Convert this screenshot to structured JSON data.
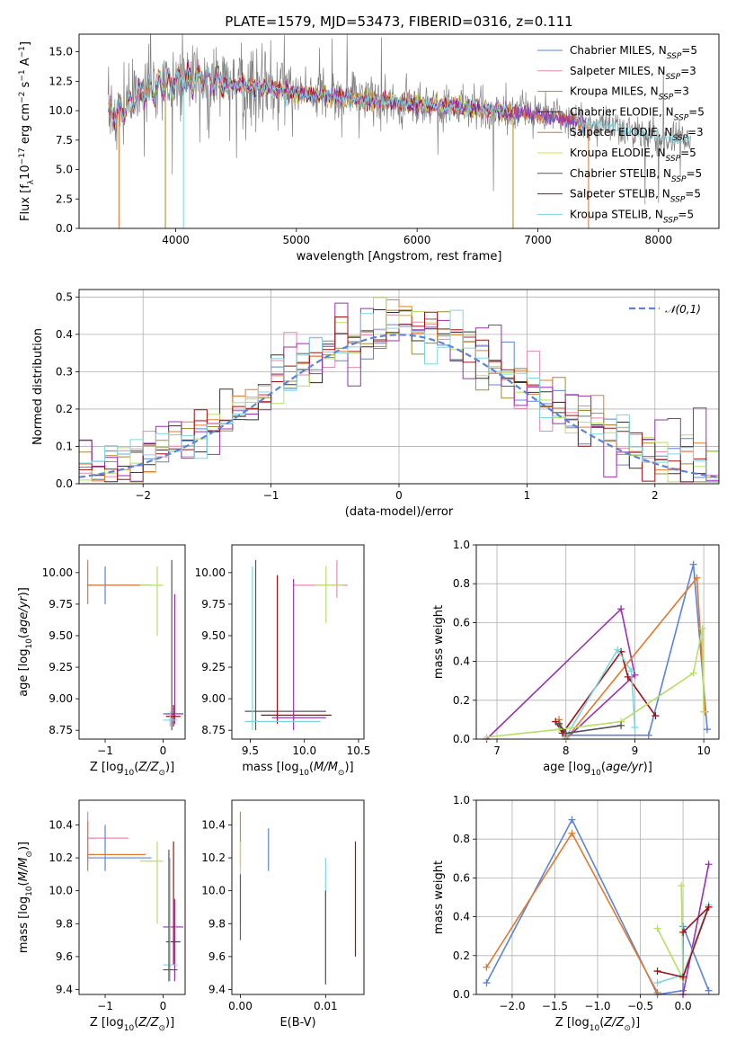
{
  "colors": {
    "chabrier_miles": "#5b84d8",
    "salpeter_miles": "#e38ab0",
    "kroupa_miles": "#a58a2a",
    "chabrier_elodie": "#333333",
    "salpeter_elodie": "#e0702a",
    "kroupa_elodie": "#d8e04a",
    "chabrier_stelib": "#555555",
    "salpeter_stelib": "#a01010",
    "kroupa_stelib": "#7cd6e0",
    "purple": "#9b30b0",
    "green": "#b6e066",
    "orange": "#e07a30",
    "blue": "#5b84d8",
    "cyan": "#7cd6e0",
    "darkred": "#a01010",
    "spectrum": "#808080"
  },
  "chart_data": [
    {
      "id": "spectrum",
      "type": "line",
      "title": "PLATE=1579, MJD=53473, FIBERID=0316, z=0.111",
      "xlabel": "wavelength [Angstrom, rest frame]",
      "ylabel": "Flux [f$_\\lambda$10$^{-17}$ erg cm$^{-2}$ s$^{-1}$ A$^{-1}$]",
      "xlim": [
        3200,
        8500
      ],
      "ylim": [
        0,
        16.5
      ],
      "xticks": [
        4000,
        5000,
        6000,
        7000,
        8000
      ],
      "yticks": [
        0.0,
        2.5,
        5.0,
        7.5,
        10.0,
        12.5,
        15.0
      ],
      "legend_position": "top-right",
      "legend": [
        {
          "label": "Chabrier MILES, N",
          "sub": "SSP",
          "suffix": "=5",
          "color": "#5b84d8"
        },
        {
          "label": "Salpeter MILES, N",
          "sub": "SSP",
          "suffix": "=3",
          "color": "#e38ab0"
        },
        {
          "label": "Kroupa MILES, N",
          "sub": "SSP",
          "suffix": "=3",
          "color": "#a58a2a"
        },
        {
          "label": "Chabrier ELODIE, N",
          "sub": "SSP",
          "suffix": "=5",
          "color": "#333333"
        },
        {
          "label": "Salpeter ELODIE, N",
          "sub": "SSP",
          "suffix": "=3",
          "color": "#e0702a"
        },
        {
          "label": "Kroupa ELODIE, N",
          "sub": "SSP",
          "suffix": "=5",
          "color": "#d8e04a"
        },
        {
          "label": "Chabrier STELIB, N",
          "sub": "SSP",
          "suffix": "=5",
          "color": "#555555"
        },
        {
          "label": "Salpeter STELIB, N",
          "sub": "SSP",
          "suffix": "=5",
          "color": "#a01010"
        },
        {
          "label": "Kroupa STELIB, N",
          "sub": "SSP",
          "suffix": "=5",
          "color": "#7cd6e0"
        }
      ],
      "continuum": [
        [
          3440,
          9.6
        ],
        [
          3550,
          10.0
        ],
        [
          3700,
          11.3
        ],
        [
          3850,
          12.0
        ],
        [
          4000,
          12.6
        ],
        [
          4200,
          12.7
        ],
        [
          4500,
          12.2
        ],
        [
          5000,
          11.5
        ],
        [
          5500,
          11.0
        ],
        [
          6000,
          10.5
        ],
        [
          6500,
          10.2
        ],
        [
          7000,
          9.6
        ],
        [
          7500,
          8.8
        ],
        [
          8000,
          7.8
        ],
        [
          8270,
          7.5
        ]
      ]
    },
    {
      "id": "residuals",
      "type": "histogram",
      "xlabel": "(data-model)/error",
      "ylabel": "Normed distribution",
      "xlim": [
        -2.5,
        2.5
      ],
      "ylim": [
        0,
        0.52
      ],
      "xticks": [
        -2,
        -1,
        0,
        1,
        2
      ],
      "yticks": [
        0.0,
        0.1,
        0.2,
        0.3,
        0.4,
        0.5
      ],
      "grid": true,
      "legend_position": "top-right",
      "reference_curve": {
        "label": "𝒩(0,1)",
        "color": "#5b84d8",
        "style": "dashed"
      },
      "bin_width": 0.1
    },
    {
      "id": "age-vs-Z",
      "type": "errorbar",
      "xlabel": "Z [log10(Z/Z☉)]",
      "ylabel": "age [log10(age/yr)]",
      "xlim": [
        -1.45,
        0.38
      ],
      "ylim": [
        8.68,
        10.22
      ],
      "xticks": [
        -1,
        0
      ],
      "yticks": [
        8.75,
        9.0,
        9.25,
        9.5,
        9.75,
        10.0
      ],
      "points": [
        {
          "x": -1.0,
          "y": 9.9,
          "xl": -1.3,
          "xh": -0.2,
          "yl": 9.75,
          "yh": 10.05,
          "color": "#5b84d8"
        },
        {
          "x": -1.3,
          "y": 9.9,
          "xl": -1.3,
          "xh": -0.3,
          "yl": 9.75,
          "yh": 10.1,
          "color": "#e07a30"
        },
        {
          "x": -0.1,
          "y": 9.9,
          "xl": -0.4,
          "xh": 0.0,
          "yl": 9.5,
          "yh": 10.05,
          "color": "#b6e066"
        },
        {
          "x": 0.15,
          "y": 8.88,
          "xl": 0.05,
          "xh": 0.35,
          "yl": 8.75,
          "yh": 10.1,
          "color": "#555555"
        },
        {
          "x": 0.2,
          "y": 8.88,
          "xl": 0.0,
          "xh": 0.35,
          "yl": 8.8,
          "yh": 9.83,
          "color": "#9b30b0"
        },
        {
          "x": 0.18,
          "y": 8.86,
          "xl": 0.05,
          "xh": 0.3,
          "yl": 8.78,
          "yh": 8.95,
          "color": "#a01010"
        },
        {
          "x": 0.12,
          "y": 8.83,
          "xl": 0.0,
          "xh": 0.25,
          "yl": 8.78,
          "yh": 8.9,
          "color": "#7cd6e0"
        }
      ]
    },
    {
      "id": "age-vs-mass",
      "type": "errorbar",
      "xlabel": "mass [log10(M/M☉)]",
      "ylabel": "",
      "xlim": [
        9.33,
        10.55
      ],
      "ylim": [
        8.68,
        10.22
      ],
      "xticks": [
        9.5,
        10.0,
        10.5
      ],
      "yticks": [
        8.75,
        9.0,
        9.25,
        9.5,
        9.75,
        10.0
      ],
      "points": [
        {
          "x": 10.3,
          "y": 9.9,
          "xl": 9.9,
          "xh": 10.4,
          "yl": 9.8,
          "yh": 10.1,
          "color": "#e38ab0"
        },
        {
          "x": 10.2,
          "y": 9.9,
          "xl": 10.1,
          "xh": 10.35,
          "yl": 9.6,
          "yh": 10.05,
          "color": "#b6e066"
        },
        {
          "x": 9.55,
          "y": 8.9,
          "xl": 9.45,
          "xh": 10.2,
          "yl": 8.75,
          "yh": 10.1,
          "color": "#555555"
        },
        {
          "x": 9.75,
          "y": 8.87,
          "xl": 9.6,
          "xh": 10.25,
          "yl": 8.8,
          "yh": 9.98,
          "color": "#a01010"
        },
        {
          "x": 9.9,
          "y": 8.85,
          "xl": 9.7,
          "xh": 10.2,
          "yl": 8.75,
          "yh": 9.95,
          "color": "#9b30b0"
        },
        {
          "x": 9.52,
          "y": 8.82,
          "xl": 9.45,
          "xh": 10.15,
          "yl": 8.75,
          "yh": 10.05,
          "color": "#7cd6e0"
        }
      ]
    },
    {
      "id": "mass-weight-vs-age",
      "type": "line",
      "xlabel": "age [log10(age/yr)]",
      "ylabel": "mass weight",
      "xlim": [
        6.7,
        10.22
      ],
      "ylim": [
        0,
        1.0
      ],
      "xticks": [
        7,
        8,
        9,
        10
      ],
      "yticks": [
        0.0,
        0.2,
        0.4,
        0.6,
        0.8,
        1.0
      ],
      "grid": true,
      "series": [
        {
          "color": "#9b30b0",
          "x": [
            6.85,
            8.8,
            9.0,
            8.0,
            7.9
          ],
          "y": [
            0.0,
            0.67,
            0.33,
            0.0,
            0.08
          ]
        },
        {
          "color": "#5b84d8",
          "x": [
            8.0,
            9.2,
            9.85,
            10.05
          ],
          "y": [
            0.02,
            0.02,
            0.9,
            0.05
          ]
        },
        {
          "color": "#e07a30",
          "x": [
            7.9,
            8.0,
            9.9,
            10.02
          ],
          "y": [
            0.1,
            0.0,
            0.83,
            0.14
          ]
        },
        {
          "color": "#a01010",
          "x": [
            7.85,
            7.95,
            8.8,
            8.9,
            9.3
          ],
          "y": [
            0.09,
            0.03,
            0.45,
            0.32,
            0.12
          ]
        },
        {
          "color": "#7cd6e0",
          "x": [
            8.0,
            8.75,
            8.95,
            9.0
          ],
          "y": [
            0.01,
            0.46,
            0.35,
            0.06
          ]
        },
        {
          "color": "#b6e066",
          "x": [
            6.85,
            7.9,
            8.8,
            9.85,
            9.98,
            10.0
          ],
          "y": [
            0.01,
            0.05,
            0.09,
            0.34,
            0.57,
            0.14
          ]
        },
        {
          "color": "#555555",
          "x": [
            7.9,
            8.0,
            8.8
          ],
          "y": [
            0.08,
            0.03,
            0.07
          ]
        }
      ]
    },
    {
      "id": "mass-vs-Z",
      "type": "errorbar",
      "xlabel": "Z [log10(Z/Z☉)]",
      "ylabel": "mass [log10(M/M☉)]",
      "xlim": [
        -1.45,
        0.38
      ],
      "ylim": [
        9.37,
        10.55
      ],
      "xticks": [
        -1,
        0
      ],
      "yticks": [
        9.4,
        9.6,
        9.8,
        10.0,
        10.2,
        10.4
      ],
      "points": [
        {
          "x": -1.3,
          "y": 10.32,
          "xl": -1.3,
          "xh": -0.6,
          "yl": 10.18,
          "yh": 10.48,
          "color": "#e38ab0"
        },
        {
          "x": -1.0,
          "y": 10.2,
          "xl": -1.3,
          "xh": -0.2,
          "yl": 10.12,
          "yh": 10.4,
          "color": "#5b84d8"
        },
        {
          "x": -1.3,
          "y": 10.22,
          "xl": -1.3,
          "xh": -0.3,
          "yl": 10.12,
          "yh": 10.42,
          "color": "#e07a30"
        },
        {
          "x": -0.1,
          "y": 10.18,
          "xl": -0.4,
          "xh": 0.0,
          "yl": 9.8,
          "yh": 10.3,
          "color": "#b6e066"
        },
        {
          "x": 0.2,
          "y": 9.78,
          "xl": 0.0,
          "xh": 0.35,
          "yl": 9.45,
          "yh": 9.95,
          "color": "#9b30b0"
        },
        {
          "x": 0.18,
          "y": 9.69,
          "xl": 0.05,
          "xh": 0.3,
          "yl": 9.55,
          "yh": 10.3,
          "color": "#a01010"
        },
        {
          "x": 0.12,
          "y": 9.55,
          "xl": 0.0,
          "xh": 0.25,
          "yl": 9.45,
          "yh": 10.2,
          "color": "#7cd6e0"
        },
        {
          "x": 0.1,
          "y": 9.52,
          "xl": 0.0,
          "xh": 0.25,
          "yl": 9.45,
          "yh": 10.25,
          "color": "#555555"
        }
      ]
    },
    {
      "id": "mass-vs-ebv",
      "type": "errorbar",
      "xlabel": "E(B-V)",
      "ylabel": "",
      "xlim": [
        -0.001,
        0.0145
      ],
      "ylim": [
        9.37,
        10.55
      ],
      "xticks": [
        0.0,
        0.01
      ],
      "yticks": [
        9.4,
        9.6,
        9.8,
        10.0,
        10.2,
        10.4
      ],
      "points": [
        {
          "x": 0.0,
          "y": 10.3,
          "xl": 0.0,
          "xh": 0.0,
          "yl": 10.15,
          "yh": 10.48,
          "color": "#e07a30"
        },
        {
          "x": 0.0,
          "y": 10.0,
          "xl": 0.0,
          "xh": 0.0,
          "yl": 9.8,
          "yh": 10.3,
          "color": "#b6e066"
        },
        {
          "x": 0.0,
          "y": 9.85,
          "xl": 0.0,
          "xh": 0.0,
          "yl": 9.7,
          "yh": 10.1,
          "color": "#9b30b0"
        },
        {
          "x": 0.0033,
          "y": 10.25,
          "xl": 0.0033,
          "xh": 0.0033,
          "yl": 10.12,
          "yh": 10.38,
          "color": "#5b84d8"
        },
        {
          "x": 0.01,
          "y": 9.8,
          "xl": 0.01,
          "xh": 0.01,
          "yl": 9.45,
          "yh": 10.2,
          "color": "#7cd6e0"
        },
        {
          "x": 0.01,
          "y": 9.7,
          "xl": 0.01,
          "xh": 0.01,
          "yl": 9.43,
          "yh": 10.0,
          "color": "#555555"
        },
        {
          "x": 0.0135,
          "y": 9.95,
          "xl": 0.0135,
          "xh": 0.0135,
          "yl": 9.6,
          "yh": 10.3,
          "color": "#a01010"
        }
      ]
    },
    {
      "id": "mass-weight-vs-Z",
      "type": "line",
      "xlabel": "Z [log10(Z/Z☉)]",
      "ylabel": "mass weight",
      "xlim": [
        -2.42,
        0.42
      ],
      "ylim": [
        0,
        1.0
      ],
      "xticks": [
        -2.0,
        -1.5,
        -1.0,
        -0.5,
        0.0
      ],
      "yticks": [
        0.0,
        0.2,
        0.4,
        0.6,
        0.8,
        1.0
      ],
      "grid": true,
      "series": [
        {
          "color": "#5b84d8",
          "x": [
            -2.3,
            -1.3,
            -0.3,
            0.0,
            0.0,
            0.3
          ],
          "y": [
            0.06,
            0.9,
            0.0,
            0.02,
            0.35,
            0.02
          ]
        },
        {
          "color": "#e07a30",
          "x": [
            -2.3,
            -1.3,
            -0.3
          ],
          "y": [
            0.14,
            0.83,
            0.01
          ]
        },
        {
          "color": "#b6e066",
          "x": [
            -0.3,
            0.0,
            -0.02
          ],
          "y": [
            0.34,
            0.08,
            0.56
          ]
        },
        {
          "color": "#9b30b0",
          "x": [
            0.0,
            0.3
          ],
          "y": [
            0.0,
            0.67
          ]
        },
        {
          "color": "#7cd6e0",
          "x": [
            -0.3,
            0.0,
            0.3
          ],
          "y": [
            0.06,
            0.1,
            0.46
          ]
        },
        {
          "color": "#a01010",
          "x": [
            -0.3,
            0.0,
            0.3,
            0.0
          ],
          "y": [
            0.12,
            0.09,
            0.45,
            0.32
          ]
        }
      ]
    }
  ]
}
